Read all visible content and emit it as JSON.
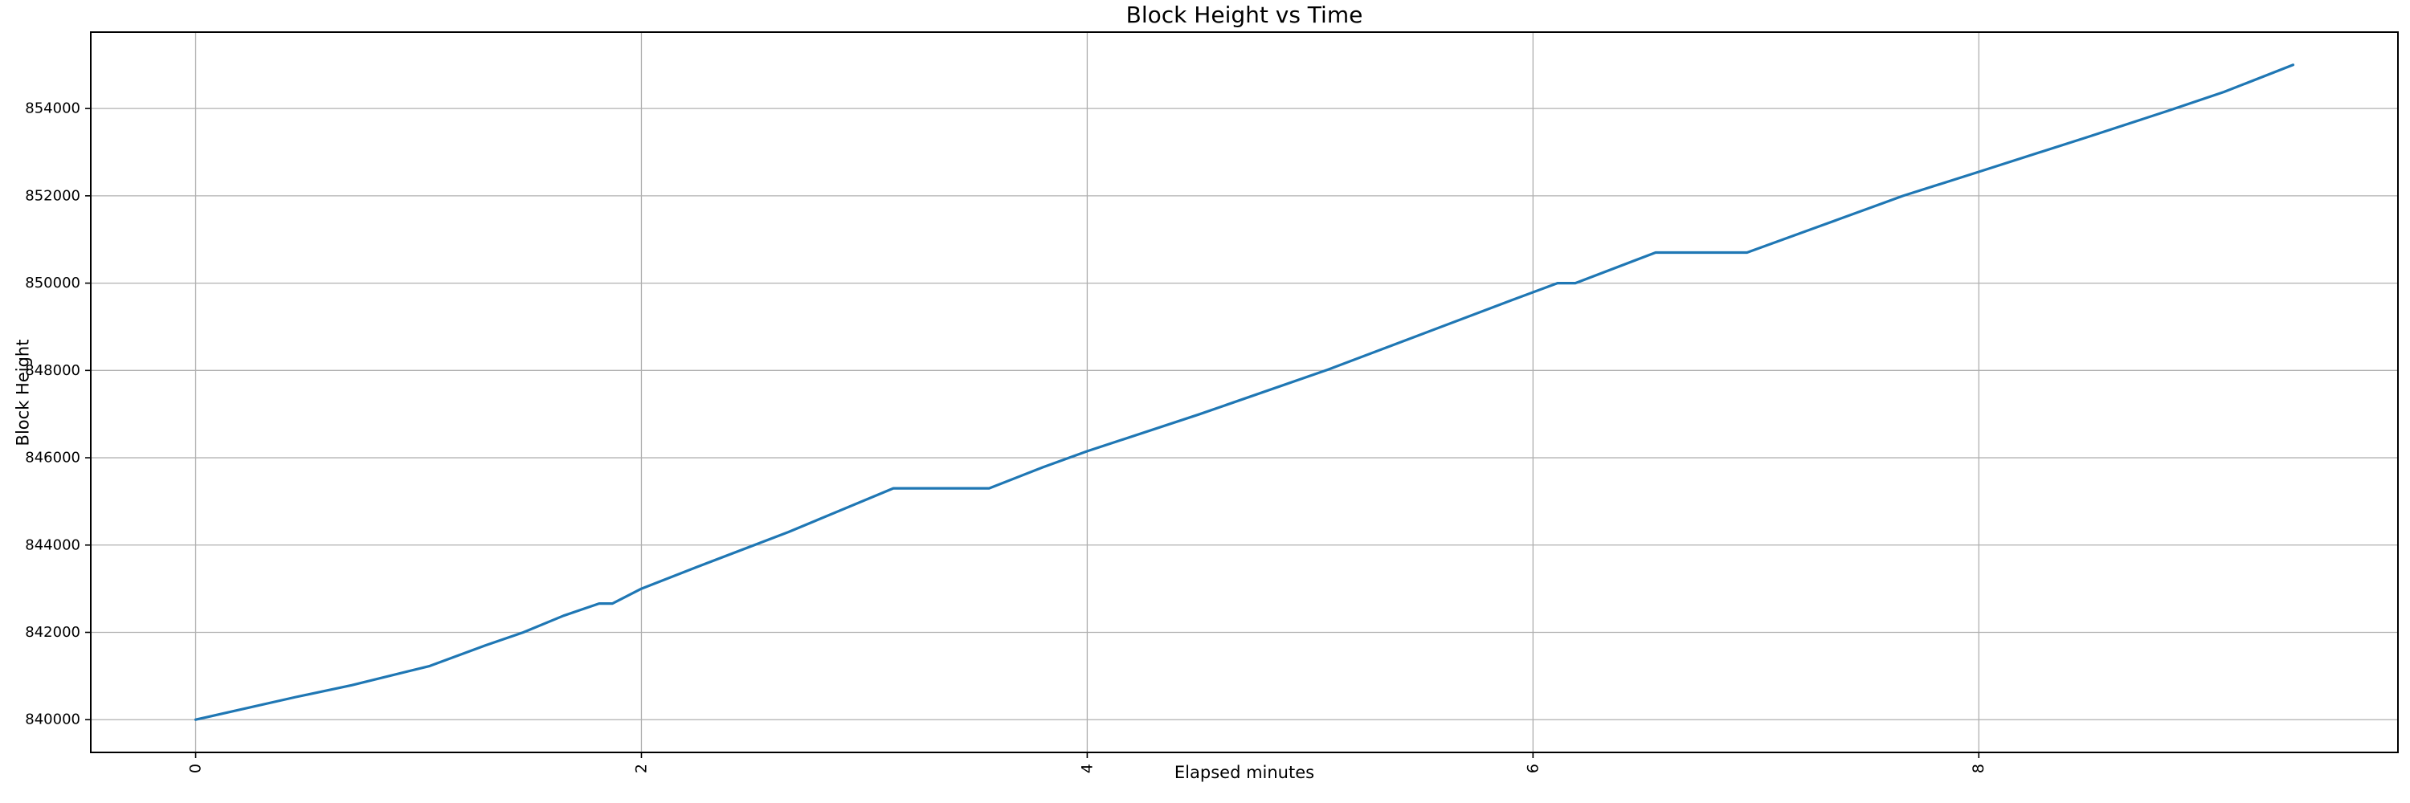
{
  "figure": {
    "title": "Block Height vs Time",
    "xlabel": "Elapsed minutes",
    "ylabel": "Block Height"
  },
  "chart_data": {
    "type": "line",
    "title": "Block Height vs Time",
    "xlabel": "Elapsed minutes",
    "ylabel": "Block Height",
    "grid": true,
    "legend_position": "none",
    "background_color": "#ffffff",
    "line_color": "#1f77b4",
    "grid_color": "#b0b0b0",
    "spine_color": "#000000",
    "xlim": [
      -0.4705,
      9.8805
    ],
    "ylim": [
      839250,
      855750
    ],
    "x_ticks": [
      0,
      2,
      4,
      6,
      8
    ],
    "x_tick_labels": [
      "0",
      "2",
      "4",
      "6",
      "8"
    ],
    "y_ticks": [
      840000,
      842000,
      844000,
      846000,
      848000,
      850000,
      852000,
      854000
    ],
    "y_tick_labels": [
      "840000",
      "842000",
      "844000",
      "846000",
      "848000",
      "850000",
      "852000",
      "854000"
    ],
    "x_tick_rotation": 90,
    "series": [
      {
        "name": "Block Height",
        "x": [
          0.0,
          0.2,
          0.45,
          0.7,
          1.05,
          1.3,
          1.47,
          1.65,
          1.81,
          1.87,
          2.0,
          2.25,
          2.66,
          3.13,
          3.56,
          3.8,
          4.0,
          4.5,
          5.07,
          5.5,
          5.9,
          6.11,
          6.19,
          6.55,
          6.96,
          7.3,
          7.66,
          8.0,
          8.49,
          8.85,
          9.1,
          9.41
        ],
        "y": [
          840000,
          840230,
          840520,
          840790,
          841230,
          841700,
          842000,
          842380,
          842660,
          842660,
          843000,
          843500,
          844300,
          845300,
          845300,
          845780,
          846150,
          846990,
          848000,
          848830,
          849600,
          850000,
          850000,
          850700,
          850700,
          851330,
          852000,
          852550,
          853350,
          853950,
          854380,
          855000
        ]
      }
    ]
  }
}
